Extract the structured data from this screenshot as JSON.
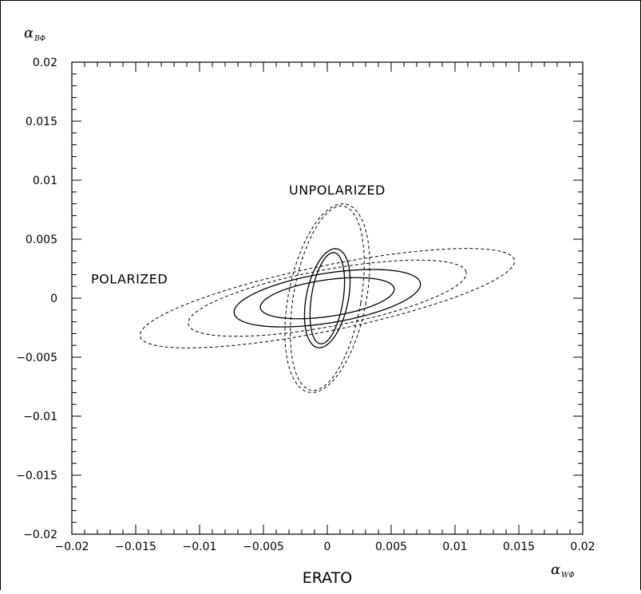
{
  "chart_data": {
    "type": "line",
    "title": "",
    "footer": "ERATO",
    "xlabel": {
      "symbol": "α",
      "subscript": "WΦ"
    },
    "ylabel": {
      "symbol": "α",
      "subscript": "BΦ"
    },
    "xlim": [
      -0.02,
      0.02
    ],
    "ylim": [
      -0.02,
      0.02
    ],
    "x_ticks": [
      {
        "v": -0.02,
        "label": "−0.02"
      },
      {
        "v": -0.015,
        "label": "−0.015"
      },
      {
        "v": -0.01,
        "label": "−0.01"
      },
      {
        "v": -0.005,
        "label": "−0.005"
      },
      {
        "v": 0,
        "label": "0"
      },
      {
        "v": 0.005,
        "label": "0.005"
      },
      {
        "v": 0.01,
        "label": "0.01"
      },
      {
        "v": 0.015,
        "label": "0.015"
      },
      {
        "v": 0.02,
        "label": "0.02"
      }
    ],
    "y_ticks": [
      {
        "v": 0.02,
        "label": "0.02"
      },
      {
        "v": 0.015,
        "label": "0.015"
      },
      {
        "v": 0.01,
        "label": "0.01"
      },
      {
        "v": 0.005,
        "label": "0.005"
      },
      {
        "v": 0,
        "label": "0"
      },
      {
        "v": -0.005,
        "label": "−0.005"
      },
      {
        "v": -0.01,
        "label": "−0.01"
      },
      {
        "v": -0.015,
        "label": "−0.015"
      },
      {
        "v": -0.02,
        "label": "−0.02"
      }
    ],
    "grid": false,
    "annotations": [
      {
        "text": "UNPOLARIZED",
        "x": -0.003,
        "y": 0.0088
      },
      {
        "text": "POLARIZED",
        "x": -0.0185,
        "y": 0.00125
      }
    ],
    "series": [
      {
        "group": "polarized",
        "style": "dashed",
        "shape": "ellipse",
        "cx": 0.0,
        "cy": 0.0,
        "rx": 0.015,
        "ry": 0.00275,
        "angle_deg": 12.5
      },
      {
        "group": "polarized",
        "style": "dashed",
        "shape": "ellipse",
        "cx": 0.0,
        "cy": 0.0,
        "rx": 0.0111,
        "ry": 0.0024,
        "angle_deg": 11.5
      },
      {
        "group": "polarized",
        "style": "solid",
        "shape": "ellipse",
        "cx": 0.0,
        "cy": 0.0,
        "rx": 0.0074,
        "ry": 0.0021,
        "angle_deg": 10
      },
      {
        "group": "polarized",
        "style": "solid",
        "shape": "ellipse",
        "cx": 0.0,
        "cy": 0.0,
        "rx": 0.0053,
        "ry": 0.00155,
        "angle_deg": 9
      },
      {
        "group": "unpolarized",
        "style": "dashed",
        "shape": "ellipse",
        "cx": 0.0,
        "cy": 0.0,
        "rx": 0.00305,
        "ry": 0.0081,
        "angle_deg": -10
      },
      {
        "group": "unpolarized",
        "style": "dashed",
        "shape": "ellipse",
        "cx": 0.0,
        "cy": 0.0,
        "rx": 0.00265,
        "ry": 0.0079,
        "angle_deg": -9
      },
      {
        "group": "unpolarized",
        "style": "solid",
        "shape": "ellipse",
        "cx": 0.0,
        "cy": 0.0,
        "rx": 0.00165,
        "ry": 0.00425,
        "angle_deg": -10
      },
      {
        "group": "unpolarized",
        "style": "solid",
        "shape": "ellipse",
        "cx": 0.0,
        "cy": 0.0,
        "rx": 0.00125,
        "ry": 0.0039,
        "angle_deg": -8
      }
    ]
  }
}
